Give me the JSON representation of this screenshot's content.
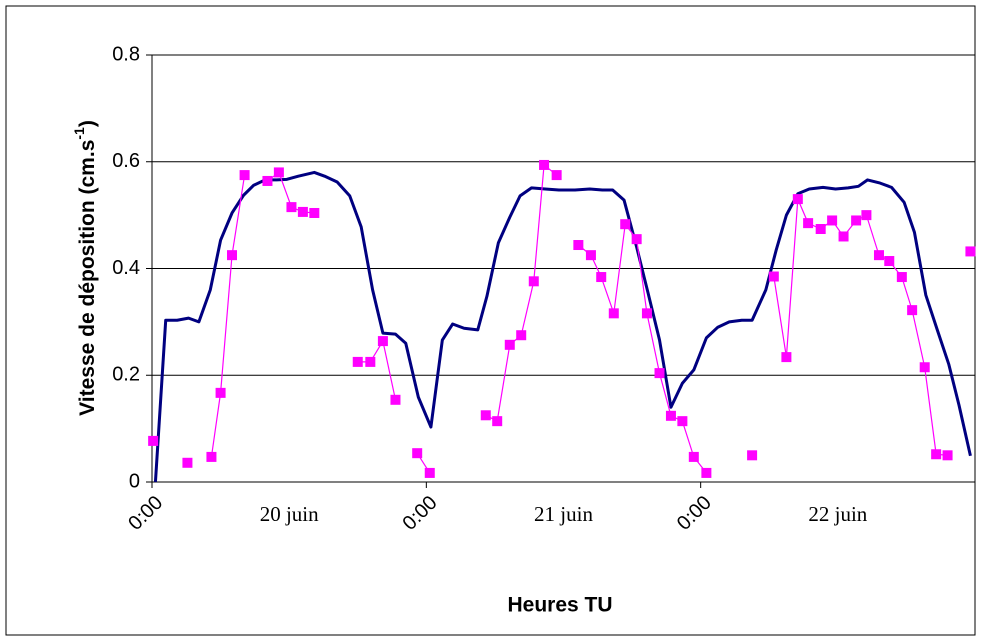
{
  "chart_data": {
    "type": "line",
    "x_label": "Heures TU",
    "y_label": {
      "text": "Vitesse de déposition (cm.s",
      "sup": "-1",
      "end": ")"
    },
    "xlim": [
      0,
      72
    ],
    "xticks": [
      {
        "value": 0,
        "label": "0:00"
      },
      {
        "value": 24,
        "label": "0:00"
      },
      {
        "value": 48,
        "label": "0:00"
      }
    ],
    "day_labels": [
      {
        "value": 12,
        "label": "20 juin"
      },
      {
        "value": 36,
        "label": "21 juin"
      },
      {
        "value": 60,
        "label": "22 juin"
      }
    ],
    "ylim": [
      0,
      0.8
    ],
    "yticks": [
      0,
      0.2,
      0.4,
      0.6,
      0.8
    ],
    "grid": true,
    "series": [
      {
        "color": "#000080",
        "marker": "none",
        "x": [
          0.3,
          1.2,
          2.2,
          3.2,
          4.1,
          5.1,
          6.0,
          7.0,
          8.0,
          8.9,
          9.9,
          10.9,
          11.8,
          12.8,
          14.2,
          15.1,
          16.2,
          17.3,
          18.3,
          19.3,
          20.2,
          21.3,
          22.2,
          23.3,
          24.4,
          25.4,
          26.3,
          27.3,
          28.5,
          29.3,
          30.3,
          31.3,
          32.2,
          33.2,
          34.4,
          35.6,
          37.0,
          38.3,
          39.4,
          40.3,
          41.3,
          42.4,
          43.4,
          44.4,
          45.4,
          46.4,
          47.4,
          48.5,
          49.5,
          50.5,
          51.6,
          52.5,
          53.7,
          54.6,
          55.5,
          56.5,
          57.5,
          58.7,
          59.8,
          60.9,
          61.8,
          62.6,
          63.7,
          64.7,
          65.8,
          66.7,
          67.7,
          68.7,
          69.7,
          70.6,
          71.6
        ],
        "values": [
          0,
          0.303,
          0.303,
          0.307,
          0.3,
          0.36,
          0.453,
          0.504,
          0.537,
          0.556,
          0.566,
          0.566,
          0.567,
          0.573,
          0.58,
          0.573,
          0.562,
          0.536,
          0.478,
          0.36,
          0.279,
          0.277,
          0.26,
          0.159,
          0.103,
          0.266,
          0.296,
          0.288,
          0.285,
          0.348,
          0.448,
          0.496,
          0.536,
          0.551,
          0.549,
          0.547,
          0.547,
          0.549,
          0.547,
          0.547,
          0.528,
          0.44,
          0.354,
          0.266,
          0.14,
          0.185,
          0.21,
          0.27,
          0.29,
          0.3,
          0.303,
          0.303,
          0.36,
          0.434,
          0.5,
          0.54,
          0.549,
          0.552,
          0.549,
          0.551,
          0.554,
          0.566,
          0.56,
          0.552,
          0.524,
          0.468,
          0.35,
          0.285,
          0.221,
          0.144,
          0.049
        ]
      },
      {
        "color": "#ff00ff",
        "marker": "square",
        "x": [
          0.1,
          null,
          3.1,
          null,
          5.2,
          6.0,
          7.0,
          8.1,
          null,
          10.1,
          11.1,
          12.2,
          13.2,
          14.2,
          null,
          18.0,
          19.1,
          20.2,
          21.3,
          null,
          23.2,
          24.3,
          null,
          29.2,
          30.2,
          31.3,
          32.3,
          33.4,
          34.3,
          35.4,
          null,
          37.3,
          38.4,
          39.3,
          40.4,
          41.4,
          42.4,
          43.3,
          44.4,
          45.4,
          46.4,
          47.4,
          48.5,
          null,
          52.5,
          null,
          54.4,
          55.5,
          56.5,
          57.4,
          58.5,
          59.5,
          60.5,
          61.6,
          62.5,
          63.6,
          64.5,
          65.6,
          66.5,
          67.6,
          68.6,
          69.6,
          null,
          71.6
        ],
        "values": [
          0.077,
          null,
          0.036,
          null,
          0.047,
          0.167,
          0.425,
          0.575,
          null,
          0.564,
          0.58,
          0.515,
          0.506,
          0.504,
          null,
          0.225,
          0.225,
          0.264,
          0.154,
          null,
          0.054,
          0.017,
          null,
          0.125,
          0.114,
          0.257,
          0.275,
          0.376,
          0.594,
          0.575,
          null,
          0.444,
          0.425,
          0.384,
          0.316,
          0.483,
          0.455,
          0.316,
          0.204,
          0.124,
          0.114,
          0.047,
          0.017,
          null,
          0.05,
          null,
          0.385,
          0.234,
          0.53,
          0.485,
          0.474,
          0.49,
          0.46,
          0.49,
          0.5,
          0.425,
          0.414,
          0.384,
          0.322,
          0.215,
          0.052,
          0.05,
          null,
          0.432
        ]
      }
    ]
  }
}
